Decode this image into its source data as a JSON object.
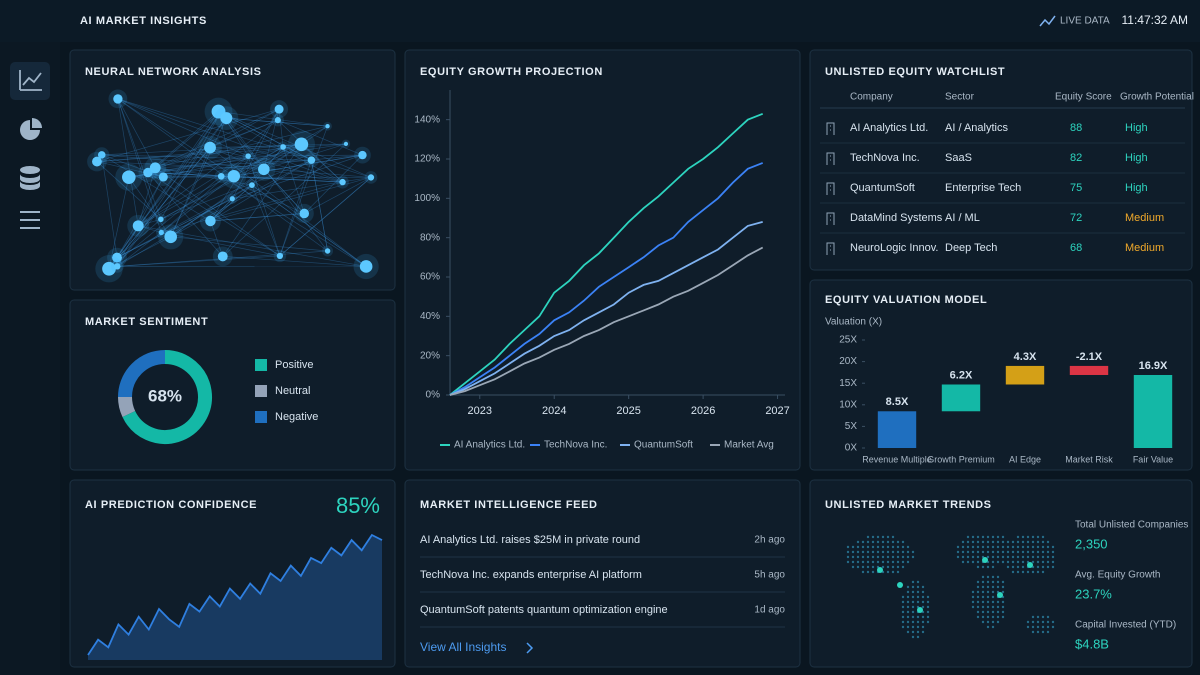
{
  "header": {
    "title": "AI MARKET INSIGHTS",
    "live": "LIVE DATA",
    "time": "11:47:32 AM"
  },
  "network": {
    "title": "NEURAL NETWORK ANALYSIS"
  },
  "watchlist": {
    "title": "UNLISTED EQUITY WATCHLIST",
    "columns": [
      "Company",
      "Sector",
      "Equity Score",
      "Growth Potential"
    ],
    "rows": [
      [
        "AI Analytics Ltd.",
        "AI / Analytics",
        88,
        "High"
      ],
      [
        "TechNova Inc.",
        "SaaS",
        82,
        "High"
      ],
      [
        "QuantumSoft",
        "Enterprise Tech",
        75,
        "High"
      ],
      [
        "DataMind Systems",
        "AI / ML",
        72,
        "Medium"
      ],
      [
        "NeuroLogic Innov.",
        "Deep Tech",
        68,
        "Medium"
      ]
    ]
  },
  "feed": {
    "title": "MARKET INTELLIGENCE FEED",
    "items": [
      {
        "text": "AI Analytics Ltd. raises $25M in private round",
        "time": "2h ago"
      },
      {
        "text": "TechNova Inc. expands enterprise AI platform",
        "time": "5h ago"
      },
      {
        "text": "QuantumSoft patents quantum optimization engine",
        "time": "1d ago"
      }
    ],
    "link": "View All Insights"
  },
  "trends": {
    "title": "UNLISTED MARKET TRENDS",
    "stats": [
      {
        "label": "Total Unlisted Companies",
        "value": "2,350"
      },
      {
        "label": "Avg. Equity Growth",
        "value": "23.7%"
      },
      {
        "label": "Capital Invested (YTD)",
        "value": "$4.8B"
      }
    ]
  },
  "chart_data": [
    {
      "type": "line",
      "title": "EQUITY GROWTH PROJECTION",
      "x": [
        2022.6,
        2022.8,
        2023.0,
        2023.2,
        2023.4,
        2023.6,
        2023.8,
        2024.0,
        2024.2,
        2024.4,
        2024.6,
        2024.8,
        2025.0,
        2025.2,
        2025.4,
        2025.6,
        2025.8,
        2026.0,
        2026.2,
        2026.4,
        2026.6,
        2026.8
      ],
      "xlim": [
        2022.6,
        2027.1
      ],
      "xticks": [
        2023,
        2024,
        2025,
        2026,
        2027
      ],
      "ylim": [
        0,
        150
      ],
      "yticks": [
        {
          "value": 0,
          "label": "0%"
        },
        {
          "value": 20,
          "label": "20%"
        },
        {
          "value": 40,
          "label": "40%"
        },
        {
          "value": 60,
          "label": "60%"
        },
        {
          "value": 80,
          "label": "80%"
        },
        {
          "value": 100,
          "label": "100%"
        },
        {
          "value": 120,
          "label": "120%"
        },
        {
          "value": 140,
          "label": "140%"
        }
      ],
      "series": [
        {
          "name": "AI Analytics Ltd.",
          "color": "#2dd4bf",
          "values": [
            0,
            6,
            12,
            18,
            26,
            33,
            40,
            52,
            58,
            66,
            72,
            80,
            88,
            95,
            101,
            108,
            115,
            120,
            126,
            133,
            140,
            143
          ]
        },
        {
          "name": "TechNova Inc.",
          "color": "#3b82f6",
          "values": [
            0,
            4,
            9,
            14,
            20,
            26,
            31,
            38,
            42,
            48,
            55,
            60,
            65,
            70,
            76,
            80,
            88,
            94,
            100,
            108,
            115,
            118
          ]
        },
        {
          "name": "QuantumSoft",
          "color": "#7fb2f0",
          "values": [
            0,
            3,
            7,
            11,
            16,
            21,
            25,
            30,
            33,
            38,
            42,
            46,
            52,
            56,
            58,
            62,
            66,
            70,
            74,
            80,
            86,
            88
          ]
        },
        {
          "name": "Market Avg",
          "color": "#9aa7b6",
          "values": [
            0,
            2,
            5,
            8,
            12,
            16,
            19,
            23,
            26,
            30,
            33,
            37,
            40,
            43,
            46,
            50,
            53,
            57,
            61,
            66,
            71,
            75
          ]
        }
      ]
    },
    {
      "type": "waterfall",
      "title": "EQUITY VALUATION MODEL",
      "y_label": "Valuation (X)",
      "categories": [
        "Revenue Multiple",
        "Growth Premium",
        "AI Edge",
        "Market Risk",
        "Fair Value"
      ],
      "values": [
        8.5,
        6.2,
        4.3,
        -2.1,
        16.9
      ],
      "value_labels": [
        "8.5X",
        "6.2X",
        "4.3X",
        "-2.1X",
        "16.9X"
      ],
      "colors": [
        "#1f6fbf",
        "#14b8a6",
        "#d4a017",
        "#dc3545",
        "#14b8a6"
      ],
      "ylim": [
        0,
        25
      ],
      "yticks": [
        {
          "value": 0,
          "label": "0X"
        },
        {
          "value": 5,
          "label": "5X"
        },
        {
          "value": 10,
          "label": "10X"
        },
        {
          "value": 15,
          "label": "15X"
        },
        {
          "value": 20,
          "label": "20X"
        },
        {
          "value": 25,
          "label": "25X"
        }
      ]
    },
    {
      "type": "donut",
      "title": "MARKET SENTIMENT",
      "center_label": "68%",
      "categories": [
        "Positive",
        "Neutral",
        "Negative"
      ],
      "values": [
        68,
        7,
        25
      ],
      "colors": [
        "#14b8a6",
        "#94a3b8",
        "#1f6fbf"
      ]
    },
    {
      "type": "area",
      "title": "AI PREDICTION CONFIDENCE",
      "headline": "85%",
      "color": "#2f7fe0",
      "values": [
        40,
        46,
        43,
        52,
        48,
        55,
        50,
        58,
        54,
        51,
        60,
        57,
        63,
        59,
        66,
        62,
        68,
        64,
        72,
        69,
        75,
        71,
        78,
        76,
        82,
        79,
        85,
        81,
        87,
        85
      ]
    }
  ]
}
